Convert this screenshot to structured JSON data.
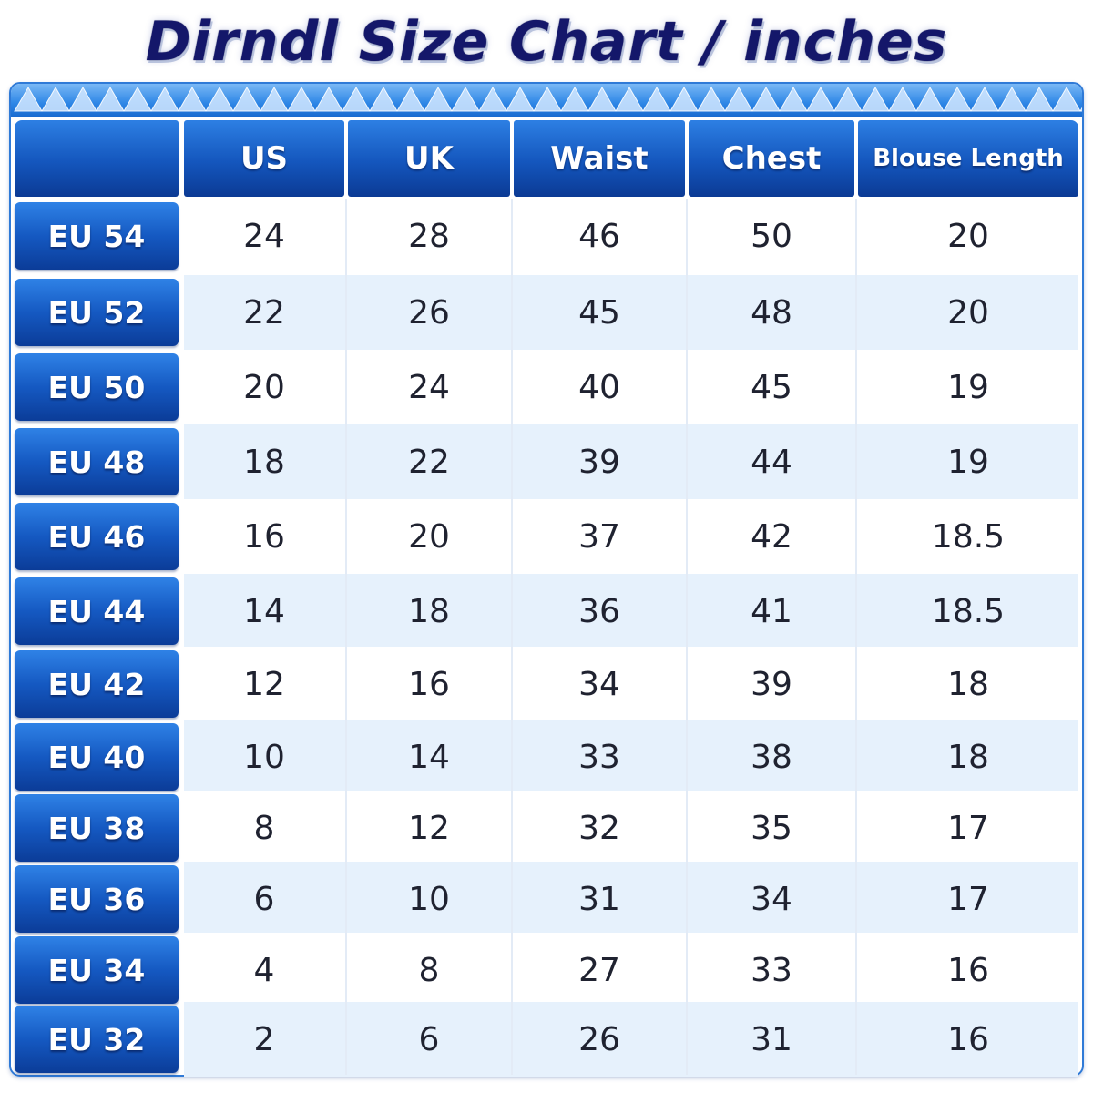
{
  "title": "Dirndl Size Chart / inches",
  "colors": {
    "title": "#14176a",
    "header_blue": "#1456bd",
    "row_alt": "#e6f1fc",
    "row_plain": "#ffffff",
    "band_blue": "#2d86e6"
  },
  "chart_data": {
    "type": "table",
    "title": "Dirndl Size Chart / inches",
    "columns": [
      "",
      "US",
      "UK",
      "Waist",
      "Chest",
      "Blouse Length"
    ],
    "rows": [
      {
        "size": "EU 54",
        "values": [
          "24",
          "28",
          "46",
          "50",
          "20"
        ]
      },
      {
        "size": "EU 52",
        "values": [
          "22",
          "26",
          "45",
          "48",
          "20"
        ]
      },
      {
        "size": "EU 50",
        "values": [
          "20",
          "24",
          "40",
          "45",
          "19"
        ]
      },
      {
        "size": "EU 48",
        "values": [
          "18",
          "22",
          "39",
          "44",
          "19"
        ]
      },
      {
        "size": "EU 46",
        "values": [
          "16",
          "20",
          "37",
          "42",
          "18.5"
        ]
      },
      {
        "size": "EU 44",
        "values": [
          "14",
          "18",
          "36",
          "41",
          "18.5"
        ]
      },
      {
        "size": "EU 42",
        "values": [
          "12",
          "16",
          "34",
          "39",
          "18"
        ]
      },
      {
        "size": "EU 40",
        "values": [
          "10",
          "14",
          "33",
          "38",
          "18"
        ]
      },
      {
        "size": "EU 38",
        "values": [
          "8",
          "12",
          "32",
          "35",
          "17"
        ]
      },
      {
        "size": "EU 36",
        "values": [
          "6",
          "10",
          "31",
          "34",
          "17"
        ]
      },
      {
        "size": "EU 34",
        "values": [
          "4",
          "8",
          "27",
          "33",
          "16"
        ]
      },
      {
        "size": "EU 32",
        "values": [
          "2",
          "6",
          "26",
          "31",
          "16"
        ]
      }
    ]
  }
}
